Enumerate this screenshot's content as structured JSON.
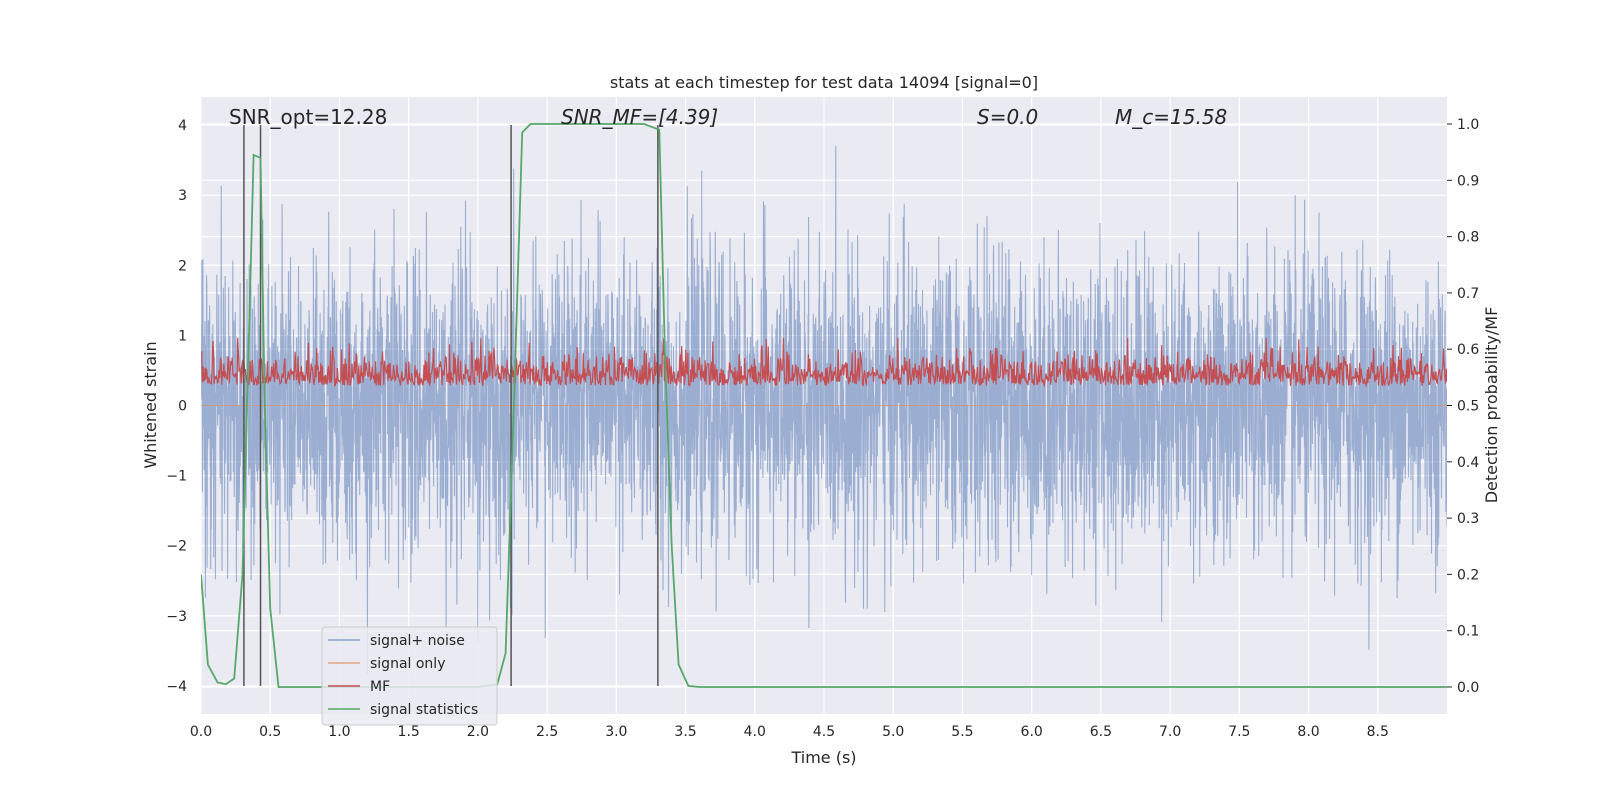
{
  "chart_data": {
    "type": "line",
    "title": "stats at each timestep for test data 14094 [signal=0]",
    "xlabel": "Time (s)",
    "ylabel": "Whitened strain",
    "y2label": "Detection probability/MF",
    "xlim": [
      0.0,
      9.0
    ],
    "ylim": [
      -4.4,
      4.4
    ],
    "y2lim": [
      -0.048,
      1.048
    ],
    "x_ticks": [
      0.0,
      0.5,
      1.0,
      1.5,
      2.0,
      2.5,
      3.0,
      3.5,
      4.0,
      4.5,
      5.0,
      5.5,
      6.0,
      6.5,
      7.0,
      7.5,
      8.0,
      8.5
    ],
    "x_tick_labels": [
      "0.0",
      "0.5",
      "1.0",
      "1.5",
      "2.0",
      "2.5",
      "3.0",
      "3.5",
      "4.0",
      "4.5",
      "5.0",
      "5.5",
      "6.0",
      "6.5",
      "7.0",
      "7.5",
      "8.0",
      "8.5"
    ],
    "y_ticks": [
      -4,
      -3,
      -2,
      -1,
      0,
      1,
      2,
      3,
      4
    ],
    "y_tick_labels": [
      "−4",
      "−3",
      "−2",
      "−1",
      "0",
      "1",
      "2",
      "3",
      "4"
    ],
    "y2_ticks": [
      0.0,
      0.1,
      0.2,
      0.3,
      0.4,
      0.5,
      0.6,
      0.7,
      0.8,
      0.9,
      1.0
    ],
    "y2_tick_labels": [
      "0.0",
      "0.1",
      "0.2",
      "0.3",
      "0.4",
      "0.5",
      "0.6",
      "0.7",
      "0.8",
      "0.9",
      "1.0"
    ],
    "annotations": [
      "SNR_opt=12.28",
      "SNR_MF=[4.39]",
      "S=0.0",
      "M_c=15.58"
    ],
    "vertical_markers": [
      {
        "x": 0.31,
        "ymin": -4.0,
        "ymax": 4.0
      },
      {
        "x": 0.43,
        "ymin": -4.0,
        "ymax": 4.0
      },
      {
        "x": 2.24,
        "ymin": -4.0,
        "ymax": 4.0
      },
      {
        "x": 3.3,
        "ymin": -4.0,
        "ymax": 4.0
      }
    ],
    "legend": {
      "placement": "lower-left",
      "entries": [
        "signal+ noise",
        "signal only",
        "MF",
        "signal statistics"
      ]
    },
    "series": [
      {
        "name": "signal+ noise",
        "axis": "left",
        "color": "#4c72b0",
        "kind": "noise",
        "approx_range": [
          -4.0,
          3.7
        ],
        "typical_envelope": 2.0
      },
      {
        "name": "signal only",
        "axis": "left",
        "color": "#dd8452",
        "kind": "flat",
        "value": 0.0
      },
      {
        "name": "MF",
        "axis": "right",
        "color": "#c44e52",
        "kind": "noise",
        "approx_range": [
          0.5,
          0.62
        ],
        "center": 0.545
      },
      {
        "name": "signal statistics",
        "axis": "right",
        "color": "#55a868",
        "kind": "line",
        "x": [
          0.0,
          0.05,
          0.12,
          0.18,
          0.24,
          0.3,
          0.36,
          0.38,
          0.43,
          0.46,
          0.5,
          0.56,
          0.7,
          1.0,
          1.6,
          2.0,
          2.14,
          2.2,
          2.26,
          2.32,
          2.38,
          3.2,
          3.31,
          3.35,
          3.4,
          3.45,
          3.52,
          3.6,
          5.0,
          7.0,
          9.0
        ],
        "y": [
          0.2,
          0.04,
          0.008,
          0.005,
          0.015,
          0.2,
          0.75,
          0.945,
          0.94,
          0.5,
          0.14,
          0.0,
          0.0,
          0.0,
          0.0,
          0.0,
          0.005,
          0.06,
          0.5,
          0.985,
          1.0,
          1.0,
          0.99,
          0.6,
          0.25,
          0.04,
          0.002,
          0.0,
          0.0,
          0.0,
          0.0
        ]
      }
    ]
  },
  "legend_labels": [
    "signal+ noise",
    "signal only",
    "MF",
    "signal statistics"
  ],
  "colors": {
    "background": "#eaeaf2",
    "grid": "#ffffff",
    "noise": "#4c72b0",
    "signal": "#dd8452",
    "mf": "#c44e52",
    "stat": "#55a868",
    "marker": "#555555"
  }
}
